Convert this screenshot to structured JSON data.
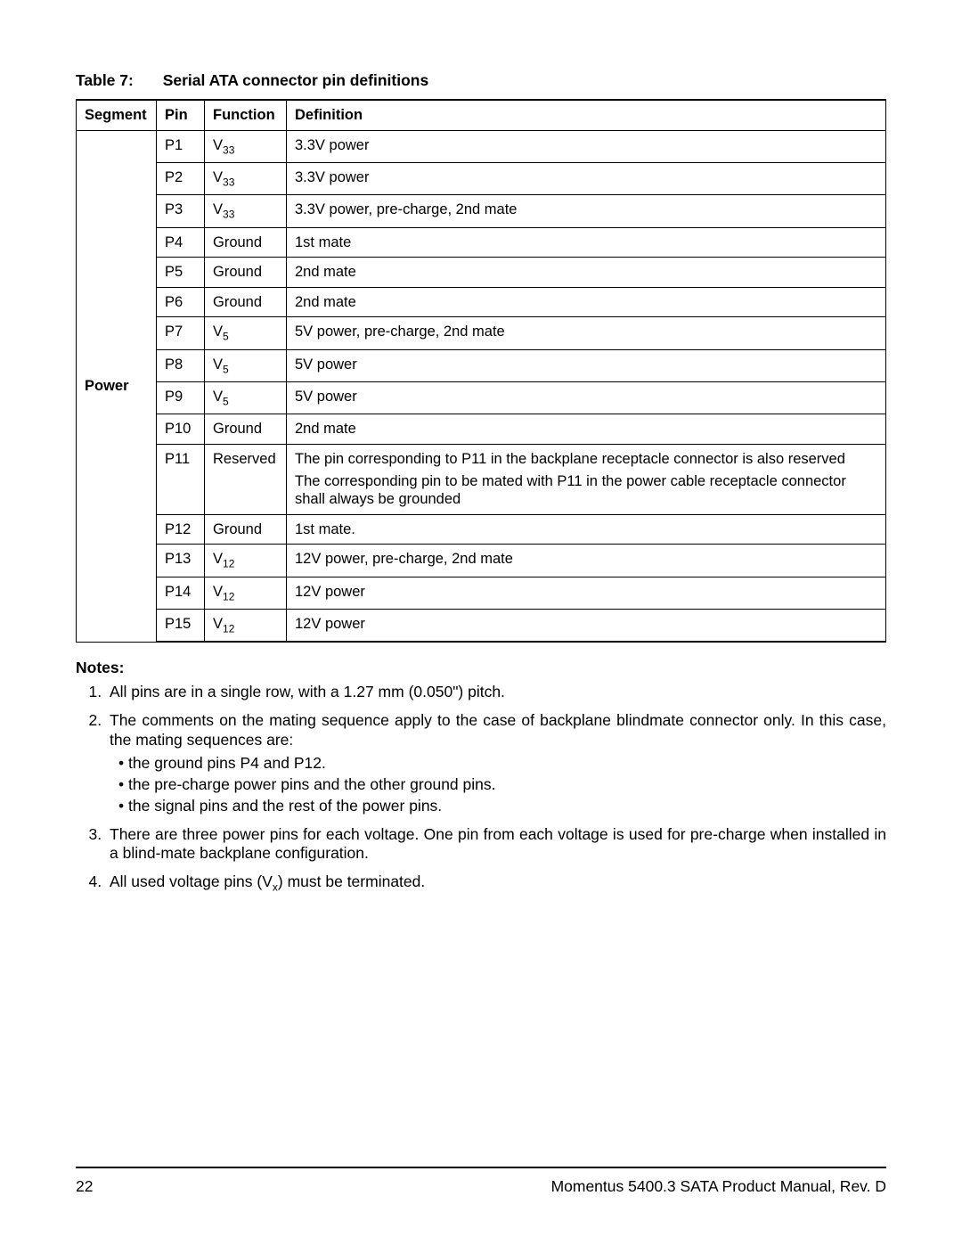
{
  "caption": {
    "label": "Table 7:",
    "title": "Serial ATA connector pin definitions"
  },
  "headers": {
    "segment": "Segment",
    "pin": "Pin",
    "function": "Function",
    "definition": "Definition"
  },
  "segment_label": "Power",
  "rows": [
    {
      "pin": "P1",
      "fn_base": "V",
      "fn_sub": "33",
      "def": "3.3V power"
    },
    {
      "pin": "P2",
      "fn_base": "V",
      "fn_sub": "33",
      "def": "3.3V power"
    },
    {
      "pin": "P3",
      "fn_base": "V",
      "fn_sub": "33",
      "def": "3.3V power, pre-charge, 2nd mate"
    },
    {
      "pin": "P4",
      "fn_base": "Ground",
      "fn_sub": "",
      "def": "1st mate"
    },
    {
      "pin": "P5",
      "fn_base": "Ground",
      "fn_sub": "",
      "def": "2nd mate"
    },
    {
      "pin": "P6",
      "fn_base": "Ground",
      "fn_sub": "",
      "def": "2nd mate"
    },
    {
      "pin": "P7",
      "fn_base": "V",
      "fn_sub": "5",
      "def": "5V power, pre-charge, 2nd mate"
    },
    {
      "pin": "P8",
      "fn_base": "V",
      "fn_sub": "5",
      "def": "5V power"
    },
    {
      "pin": "P9",
      "fn_base": "V",
      "fn_sub": "5",
      "def": "5V power"
    },
    {
      "pin": "P10",
      "fn_base": "Ground",
      "fn_sub": "",
      "def": "2nd mate"
    },
    {
      "pin": "P11",
      "fn_base": "Reserved",
      "fn_sub": "",
      "def_lines": [
        "The pin corresponding to P11 in the backplane receptacle connector is also reserved",
        "The corresponding pin to be mated with P11 in the power cable receptacle connector shall always be grounded"
      ]
    },
    {
      "pin": "P12",
      "fn_base": "Ground",
      "fn_sub": "",
      "def": "1st mate."
    },
    {
      "pin": "P13",
      "fn_base": "V",
      "fn_sub": "12",
      "def": "12V power, pre-charge, 2nd mate"
    },
    {
      "pin": "P14",
      "fn_base": "V",
      "fn_sub": "12",
      "def": "12V power"
    },
    {
      "pin": "P15",
      "fn_base": "V",
      "fn_sub": "12",
      "def": "12V power"
    }
  ],
  "notes": {
    "heading": "Notes:",
    "items": [
      {
        "text": "All pins are in a single row, with a 1.27 mm (0.050\") pitch."
      },
      {
        "text": "The comments on the mating sequence apply to the case of backplane blindmate connector only. In this case, the mating sequences are:",
        "justify": true,
        "bullets": [
          "the ground pins P4 and P12.",
          "the pre-charge power pins and the other ground pins.",
          "the signal pins and the rest of the power pins."
        ]
      },
      {
        "text": "There are three power pins for each voltage. One pin from each voltage is used for pre-charge when installed in a blind-mate backplane configuration.",
        "justify": true
      },
      {
        "text_pre": "All used voltage pins (V",
        "text_sub": "x",
        "text_post": ") must be terminated."
      }
    ]
  },
  "footer": {
    "page": "22",
    "title": "Momentus 5400.3 SATA Product Manual, Rev. D"
  }
}
